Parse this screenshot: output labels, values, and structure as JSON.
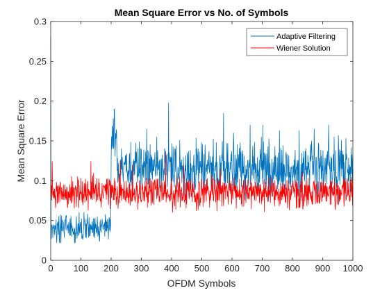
{
  "chart_data": {
    "type": "line",
    "title": "Mean Square Error vs No. of Symbols",
    "xlabel": "OFDM Symbols",
    "ylabel": "Mean Square Error",
    "xlim": [
      0,
      1000
    ],
    "ylim": [
      0,
      0.3
    ],
    "xticks": [
      0,
      100,
      200,
      300,
      400,
      500,
      600,
      700,
      800,
      900,
      1000
    ],
    "yticks": [
      0,
      0.05,
      0.1,
      0.15,
      0.2,
      0.25,
      0.3
    ],
    "xtick_labels": [
      "0",
      "100",
      "200",
      "300",
      "400",
      "500",
      "600",
      "700",
      "800",
      "900",
      "1000"
    ],
    "ytick_labels": [
      "0",
      "0.05",
      "0.1",
      "0.15",
      "0.2",
      "0.25",
      "0.3"
    ],
    "grid": false,
    "legend_position": "top-right",
    "series": [
      {
        "name": "Adaptive Filtering",
        "color": "#0072BD",
        "segments": [
          {
            "x_start": 0,
            "x_end": 1,
            "initial": 0.28
          },
          {
            "x_start": 1,
            "x_end": 200,
            "mean": 0.04,
            "amplitude": 0.016,
            "min": 0.022,
            "max": 0.063
          },
          {
            "x_start": 200,
            "x_end": 220,
            "mean": 0.15,
            "amplitude": 0.03,
            "min": 0.11,
            "max": 0.19
          },
          {
            "x_start": 220,
            "x_end": 1000,
            "mean": 0.115,
            "amplitude": 0.03,
            "min": 0.072,
            "max": 0.155
          }
        ],
        "peaks": [
          {
            "x": 211,
            "y": 0.19
          },
          {
            "x": 390,
            "y": 0.198
          },
          {
            "x": 318,
            "y": 0.165
          },
          {
            "x": 572,
            "y": 0.185
          },
          {
            "x": 605,
            "y": 0.16
          },
          {
            "x": 660,
            "y": 0.17
          },
          {
            "x": 702,
            "y": 0.17
          },
          {
            "x": 757,
            "y": 0.163
          },
          {
            "x": 822,
            "y": 0.163
          },
          {
            "x": 872,
            "y": 0.165
          },
          {
            "x": 920,
            "y": 0.17
          },
          {
            "x": 952,
            "y": 0.157
          },
          {
            "x": 977,
            "y": 0.153
          }
        ]
      },
      {
        "name": "Wiener Solution",
        "color": "#FF0000",
        "segments": [
          {
            "x_start": 0,
            "x_end": 1000,
            "mean": 0.085,
            "amplitude": 0.018,
            "min": 0.055,
            "max": 0.13
          }
        ],
        "peaks": [
          {
            "x": 5,
            "y": 0.124
          },
          {
            "x": 133,
            "y": 0.124
          },
          {
            "x": 230,
            "y": 0.125
          },
          {
            "x": 270,
            "y": 0.12
          },
          {
            "x": 380,
            "y": 0.135
          },
          {
            "x": 440,
            "y": 0.12
          },
          {
            "x": 560,
            "y": 0.115
          }
        ]
      }
    ]
  }
}
